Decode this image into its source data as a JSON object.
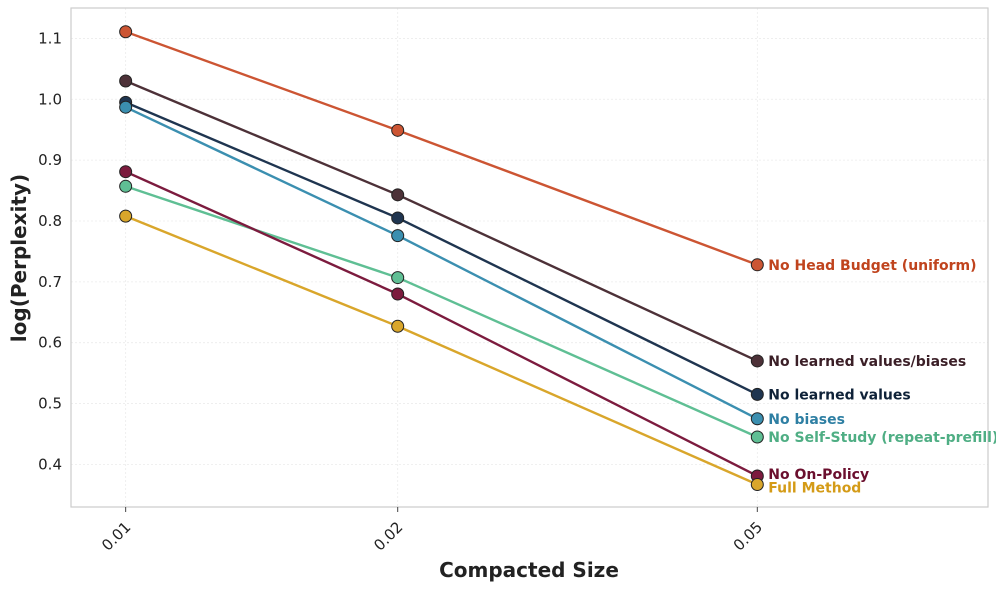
{
  "chart_data": {
    "type": "line",
    "xlabel": "Compacted Size",
    "ylabel": "log(Perplexity)",
    "x": [
      0.01,
      0.02,
      0.05
    ],
    "x_tick_labels": [
      "0.01",
      "0.02",
      "0.05"
    ],
    "x_scale": "log",
    "xlim": [
      0.0087,
      0.09
    ],
    "ylim": [
      0.33,
      1.15
    ],
    "y_ticks": [
      0.4,
      0.5,
      0.6,
      0.7,
      0.8,
      0.9,
      1.0,
      1.1
    ],
    "y_tick_labels": [
      "0.4",
      "0.5",
      "0.6",
      "0.7",
      "0.8",
      "0.9",
      "1.0",
      "1.1"
    ],
    "grid": true,
    "legend": "inline labels at right end of lines",
    "series": [
      {
        "name": "No Head Budget (uniform)",
        "values": [
          1.111,
          0.949,
          0.728
        ],
        "color": "#cc5533",
        "label_color": "#c0441e"
      },
      {
        "name": "No learned values/biases",
        "values": [
          1.03,
          0.843,
          0.57
        ],
        "color": "#4d3138",
        "label_color": "#3b1f27"
      },
      {
        "name": "No learned values",
        "values": [
          0.995,
          0.805,
          0.515
        ],
        "color": "#1f3550",
        "label_color": "#0f2238"
      },
      {
        "name": "No biases",
        "values": [
          0.987,
          0.776,
          0.475
        ],
        "color": "#3b8fb0",
        "label_color": "#2e7fa3"
      },
      {
        "name": "No Self-Study (repeat-prefill)",
        "values": [
          0.857,
          0.707,
          0.445
        ],
        "color": "#5fbf94",
        "label_color": "#4fae84"
      },
      {
        "name": "No On-Policy",
        "values": [
          0.881,
          0.68,
          0.381
        ],
        "color": "#7c1b3e",
        "label_color": "#6b0f2e"
      },
      {
        "name": "Full Method",
        "values": [
          0.808,
          0.627,
          0.367
        ],
        "color": "#d9a62b",
        "label_color": "#d49b17"
      }
    ]
  }
}
